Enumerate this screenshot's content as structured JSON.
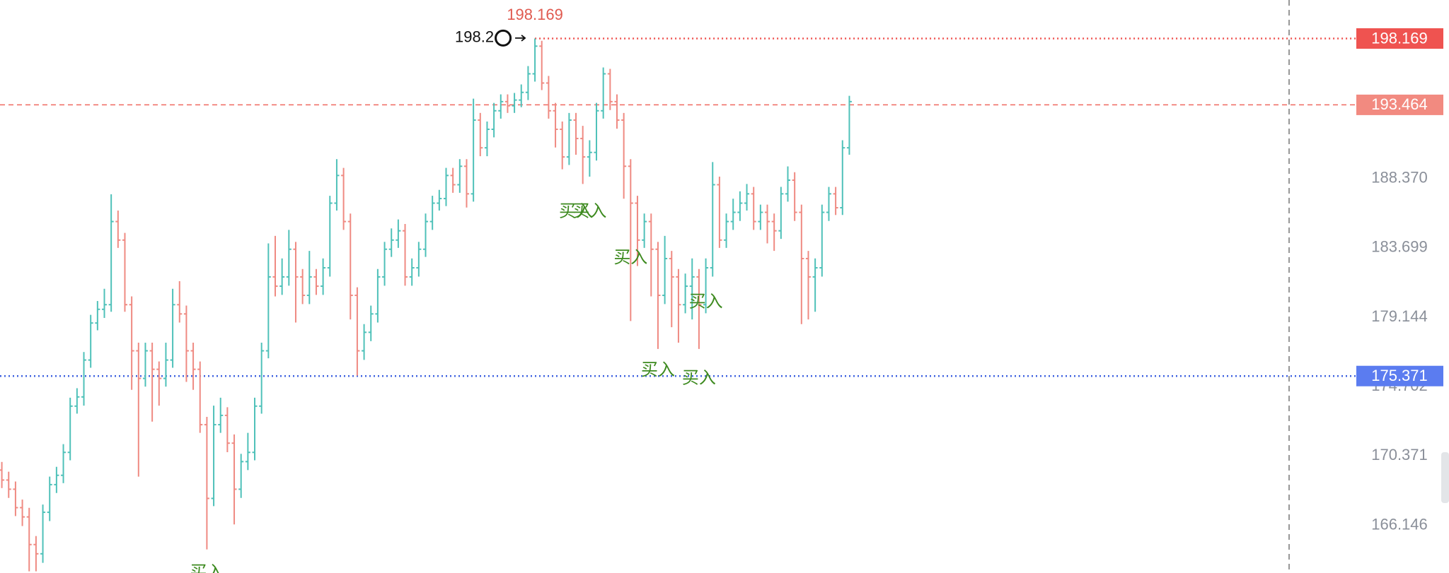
{
  "chart_data": {
    "type": "ohlc",
    "log_scale": true,
    "ylim": [
      163.3,
      200.95
    ],
    "yticks": [
      {
        "value": 188.37,
        "label": "188.370"
      },
      183.699,
      179.144,
      174.702,
      170.371,
      166.146
    ],
    "up_color": "#4fc1b9",
    "down_color": "#ef8a82",
    "open": [
      169.5,
      168.89,
      168.33,
      167.21,
      166.65,
      164.99,
      164.44,
      166.93,
      168.61,
      169.18,
      170.59,
      173.47,
      174.05,
      176.39,
      178.77,
      179.66,
      179.96,
      185.46,
      184.22,
      179.96,
      176.98,
      175.22,
      176.98,
      175.8,
      175.22,
      176.39,
      179.96,
      179.36,
      176.98,
      175.8,
      172.31,
      167.77,
      172.31,
      172.89,
      171.16,
      168.33,
      170.02,
      170.59,
      173.47,
      176.98,
      181.78,
      181.17,
      181.78,
      183.61,
      181.78,
      180.57,
      181.78,
      181.17,
      182.38,
      186.7,
      188.58,
      185.46,
      180.57,
      176.98,
      178.17,
      179.36,
      181.78,
      183.61,
      184.22,
      184.84,
      181.78,
      182.38,
      183.61,
      185.46,
      186.7,
      187.01,
      188.58,
      187.95,
      189.21,
      187.33,
      192.4,
      190.48,
      191.76,
      193.05,
      193.69,
      193.4,
      193.8,
      194.34,
      195.65,
      197.62,
      195.0,
      193.05,
      191.76,
      189.85,
      192.4,
      191.12,
      189.85,
      190.16,
      193.05,
      195.65,
      193.69,
      192.4,
      189.21,
      186.7,
      184.22,
      185.46,
      183.61,
      180.57,
      182.99,
      181.78,
      179.96,
      181.17,
      181.78,
      179.96,
      182.38,
      187.95,
      184.22,
      185.46,
      186.08,
      186.7,
      187.33,
      185.46,
      186.08,
      185.46,
      184.84,
      187.33,
      188.26,
      186.08,
      182.99,
      181.78,
      182.38,
      186.08,
      187.33,
      186.39,
      190.48
    ],
    "high": [
      170.0,
      169.4,
      168.8,
      167.7,
      167.2,
      165.5,
      167.4,
      169.1,
      169.7,
      171.1,
      174.0,
      174.6,
      176.9,
      179.3,
      180.2,
      181.0,
      187.3,
      186.2,
      184.7,
      180.5,
      177.5,
      177.5,
      177.5,
      176.3,
      177.5,
      181.0,
      181.5,
      179.9,
      177.5,
      176.3,
      172.8,
      173.5,
      174.0,
      173.4,
      171.7,
      170.5,
      171.8,
      174.0,
      177.5,
      184.0,
      184.5,
      183.0,
      184.9,
      184.1,
      182.3,
      183.5,
      182.3,
      183.0,
      187.2,
      189.7,
      189.1,
      186.0,
      181.1,
      178.7,
      179.9,
      182.3,
      184.1,
      185.0,
      185.6,
      185.3,
      183.0,
      184.1,
      186.0,
      187.2,
      187.6,
      189.1,
      189.1,
      189.7,
      189.7,
      193.9,
      192.9,
      192.3,
      193.6,
      194.2,
      194.2,
      194.3,
      194.9,
      196.2,
      198.169,
      198.0,
      195.5,
      193.6,
      192.3,
      192.9,
      192.9,
      192.0,
      191.0,
      193.6,
      196.1,
      196.0,
      194.2,
      192.9,
      189.7,
      187.2,
      186.0,
      186.0,
      184.1,
      184.5,
      183.5,
      182.3,
      182.0,
      183.0,
      182.3,
      183.0,
      189.5,
      188.5,
      186.0,
      187.0,
      187.5,
      188.0,
      187.8,
      186.6,
      186.6,
      186.0,
      187.8,
      189.2,
      188.8,
      186.6,
      183.5,
      183.0,
      186.6,
      187.8,
      187.8,
      191.0,
      194.1
    ],
    "low": [
      168.4,
      167.8,
      166.7,
      166.1,
      163.4,
      163.4,
      163.9,
      166.4,
      168.1,
      168.7,
      170.1,
      173.0,
      173.5,
      175.9,
      178.3,
      179.1,
      179.5,
      183.7,
      179.5,
      174.5,
      169.1,
      174.7,
      172.5,
      173.5,
      174.7,
      175.9,
      178.8,
      175.0,
      174.5,
      171.8,
      164.7,
      167.3,
      171.8,
      170.6,
      166.2,
      167.8,
      169.5,
      170.1,
      173.0,
      176.5,
      180.5,
      180.6,
      181.2,
      178.8,
      180.0,
      180.0,
      180.6,
      180.6,
      181.8,
      186.2,
      184.9,
      179.0,
      175.4,
      176.4,
      177.6,
      178.8,
      181.2,
      183.1,
      183.7,
      181.2,
      181.2,
      181.8,
      183.1,
      184.9,
      186.2,
      186.5,
      187.4,
      187.4,
      186.4,
      186.8,
      189.9,
      189.9,
      191.2,
      192.5,
      192.9,
      192.9,
      193.3,
      193.8,
      195.1,
      194.5,
      192.5,
      190.5,
      189.0,
      189.3,
      190.0,
      188.0,
      188.5,
      189.6,
      192.5,
      193.1,
      191.8,
      187.0,
      178.9,
      182.5,
      183.7,
      180.5,
      177.1,
      180.0,
      178.5,
      177.5,
      179.4,
      179.0,
      177.1,
      179.4,
      181.8,
      183.7,
      183.7,
      184.9,
      185.5,
      186.2,
      184.9,
      184.9,
      184.0,
      183.5,
      184.3,
      186.8,
      185.5,
      178.7,
      179.0,
      179.5,
      181.8,
      185.5,
      185.9,
      185.9,
      190.0
    ],
    "close": [
      168.89,
      168.33,
      167.21,
      166.65,
      164.99,
      164.44,
      166.93,
      168.61,
      169.18,
      170.59,
      173.47,
      174.05,
      176.39,
      178.77,
      179.66,
      179.96,
      185.46,
      184.22,
      179.96,
      176.98,
      175.22,
      176.98,
      175.8,
      175.22,
      176.39,
      179.96,
      179.36,
      176.98,
      175.8,
      172.31,
      167.77,
      172.31,
      172.89,
      171.16,
      168.33,
      170.02,
      170.59,
      173.47,
      176.98,
      181.78,
      181.17,
      181.78,
      183.61,
      181.78,
      180.57,
      181.78,
      181.17,
      182.38,
      186.7,
      188.58,
      185.46,
      180.57,
      176.98,
      178.17,
      179.36,
      181.78,
      183.61,
      184.22,
      184.84,
      181.78,
      182.38,
      183.61,
      185.46,
      186.7,
      187.01,
      188.58,
      187.95,
      189.21,
      187.33,
      192.4,
      190.48,
      191.76,
      193.05,
      193.69,
      193.4,
      193.8,
      194.34,
      195.65,
      197.62,
      195.0,
      193.05,
      191.76,
      189.85,
      192.4,
      191.12,
      189.85,
      190.16,
      193.05,
      195.65,
      193.69,
      192.4,
      189.21,
      186.7,
      184.22,
      185.46,
      183.61,
      180.57,
      182.99,
      181.78,
      179.96,
      181.17,
      181.78,
      179.96,
      182.38,
      187.95,
      184.22,
      185.46,
      186.08,
      186.7,
      187.33,
      185.46,
      186.08,
      185.46,
      184.84,
      187.33,
      188.26,
      186.08,
      182.99,
      181.78,
      182.38,
      186.08,
      187.33,
      186.39,
      190.48,
      193.69
    ],
    "peak_index": 78,
    "price_marker": {
      "value": 198.2
    },
    "price_lines": [
      {
        "value": 198.169,
        "color": "#ef5350",
        "label_color": "#ef5350",
        "style": "dotted",
        "from_index": 78
      },
      {
        "value": 193.464,
        "color": "#ef6a60",
        "label_color": "#f28a80",
        "style": "dashed"
      },
      {
        "value": 175.371,
        "color": "#3f63e0",
        "label_color": "#5b7cf0",
        "style": "dotted"
      }
    ],
    "annotations": [
      {
        "text": "买入",
        "index": 84,
        "value": 186.1
      },
      {
        "text": "买入",
        "index": 86,
        "value": 186.1
      },
      {
        "text": "买入",
        "index": 92,
        "value": 183.0
      },
      {
        "text": "买入",
        "index": 103,
        "value": 180.1
      },
      {
        "text": "买入",
        "index": 96,
        "value": 175.7
      },
      {
        "text": "买入",
        "index": 102,
        "value": 175.2
      },
      {
        "text": "买入",
        "index": 30,
        "value": 163.3
      }
    ]
  }
}
